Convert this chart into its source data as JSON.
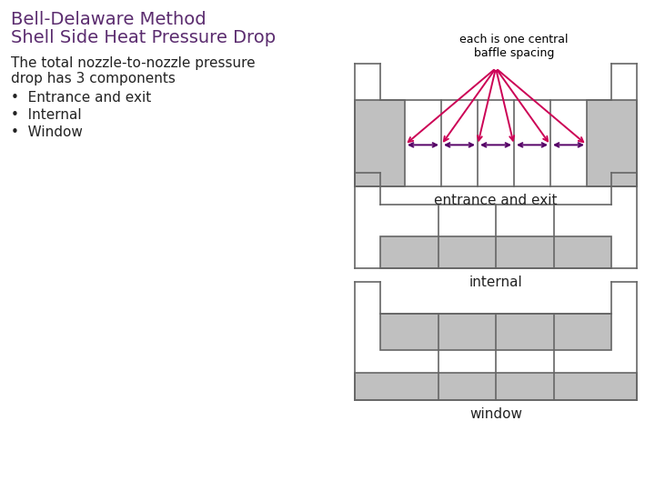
{
  "title_line1": "Bell-Delaware Method",
  "title_line2": "Shell Side Heat Pressure Drop",
  "title_color": "#5B2C6F",
  "body_text1": "The total nozzle-to-nozzle pressure",
  "body_text2": "drop has 3 components",
  "bullet1": "•  Entrance and exit",
  "bullet2": "•  Internal",
  "bullet3": "•  Window",
  "text_color": "#222222",
  "annotation_top": "each is one central\nbaffle spacing",
  "annotation_entrance": "entrance and exit",
  "annotation_internal": "internal",
  "annotation_window": "window",
  "bg_color": "#ffffff",
  "shade_color": "#c0c0c0",
  "line_color": "#666666",
  "arrow_fan_color": "#cc0055",
  "arrow_horiz_color": "#550066"
}
